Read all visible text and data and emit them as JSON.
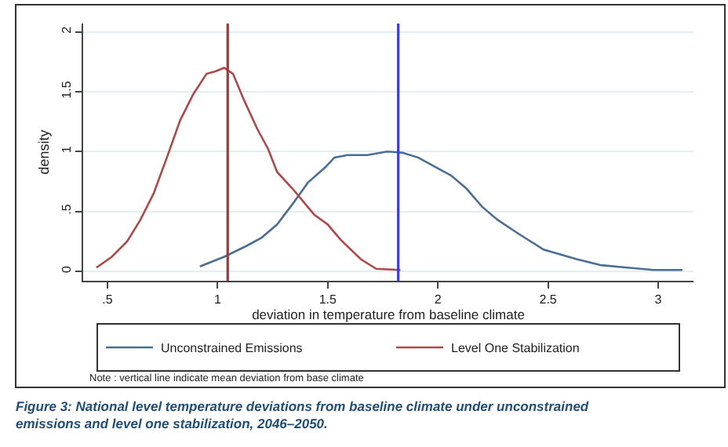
{
  "chart_data": {
    "type": "line",
    "xlabel": "deviation in temperature from baseline climate",
    "ylabel": "density",
    "xlim": [
      0.39,
      3.16
    ],
    "ylim": [
      -0.08,
      2.07
    ],
    "xticks": [
      {
        "value": 0.5,
        "label": ".5"
      },
      1,
      1.5,
      2,
      2.5,
      3
    ],
    "yticks": [
      0,
      {
        "value": 0.5,
        "label": ".5"
      },
      1,
      1.5,
      2
    ],
    "grid": "y",
    "legend": "bottom",
    "marker": "none",
    "line_style": "solid",
    "series": [
      {
        "name": "Unconstrained Emissions",
        "color": "#4a6f96",
        "x": [
          0.92,
          1.03,
          1.13,
          1.2,
          1.27,
          1.34,
          1.41,
          1.49,
          1.53,
          1.59,
          1.68,
          1.77,
          1.84,
          1.91,
          1.98,
          2.06,
          2.13,
          2.2,
          2.27,
          2.36,
          2.48,
          2.63,
          2.74,
          2.86,
          2.98,
          3.11
        ],
        "values": [
          0.04,
          0.12,
          0.21,
          0.28,
          0.39,
          0.56,
          0.74,
          0.87,
          0.95,
          0.97,
          0.97,
          1.0,
          0.99,
          0.95,
          0.88,
          0.8,
          0.69,
          0.54,
          0.43,
          0.32,
          0.18,
          0.1,
          0.05,
          0.03,
          0.01,
          0.01
        ]
      },
      {
        "name": "Level One Stabilization",
        "color": "#b04848",
        "x": [
          0.45,
          0.52,
          0.59,
          0.65,
          0.71,
          0.77,
          0.83,
          0.89,
          0.95,
          0.99,
          1.03,
          1.07,
          1.12,
          1.18,
          1.23,
          1.27,
          1.34,
          1.39,
          1.44,
          1.5,
          1.56,
          1.65,
          1.72,
          1.83
        ],
        "values": [
          0.03,
          0.12,
          0.25,
          0.43,
          0.65,
          0.95,
          1.26,
          1.48,
          1.65,
          1.67,
          1.7,
          1.65,
          1.43,
          1.19,
          1.02,
          0.83,
          0.69,
          0.58,
          0.47,
          0.39,
          0.26,
          0.1,
          0.02,
          0.01
        ]
      }
    ],
    "ref_lines": [
      {
        "axis": "x",
        "value": 1.046,
        "color": "#a03838"
      },
      {
        "axis": "x",
        "value": 1.82,
        "color": "#3a3aff"
      }
    ],
    "annotations": [
      "Note : vertical line indicate mean deviation from base climate",
      "Figure 3: National level temperature deviations from baseline climate under unconstrained emissions and level one stabilization, 2046–2050."
    ]
  }
}
